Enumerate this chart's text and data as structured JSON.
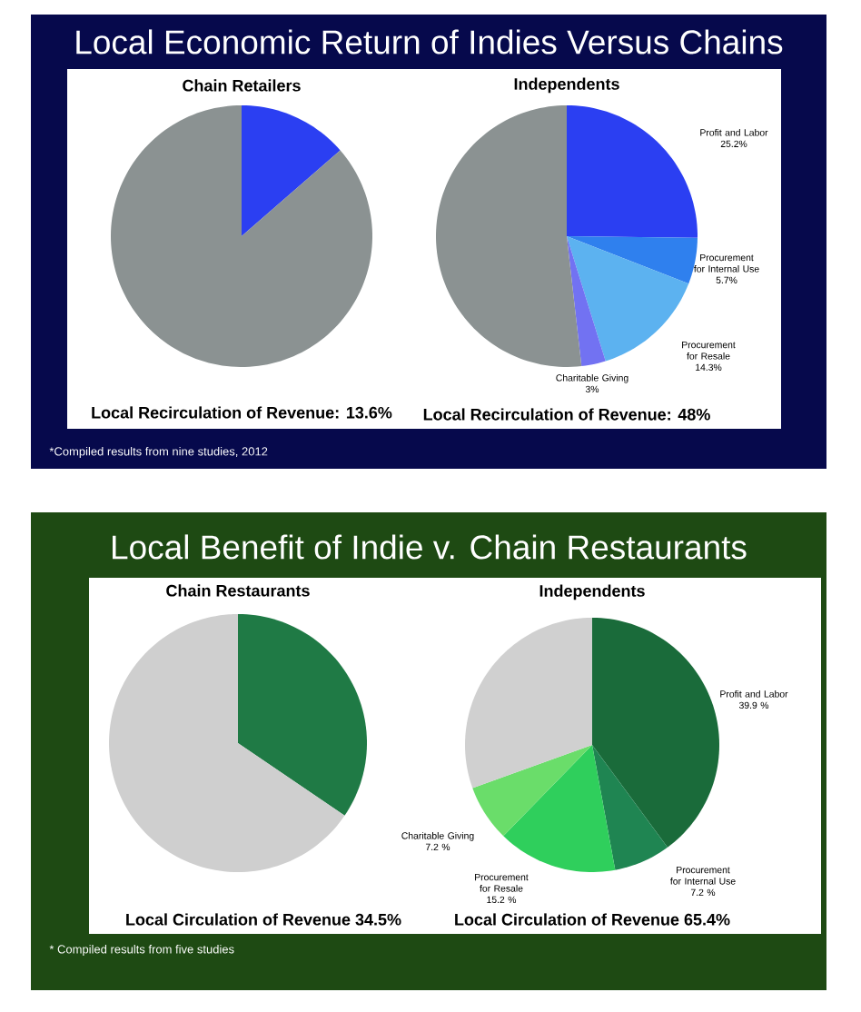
{
  "chart_data": [
    {
      "type": "pie",
      "title": "Local Economic Return of Indies Versus Chains",
      "subtitle": "Chain Retailers",
      "categories": [
        null,
        null
      ],
      "values": [
        13.6,
        86.4
      ],
      "colors": [
        "#2b3ff2",
        "#8b9292"
      ],
      "annotations": [
        "Local Recirculation of Revenue: 13.6%"
      ]
    },
    {
      "type": "pie",
      "title": "Independents",
      "categories": [
        "Profit and Labor",
        "Procurement for Internal Use",
        "Procurement for Resale",
        "Charitable Giving",
        null
      ],
      "values": [
        25.2,
        5.7,
        14.3,
        3,
        51.8
      ],
      "value_labels": [
        "25.2%",
        "5.7%",
        "14.3%",
        "3%",
        null
      ],
      "colors": [
        "#2b3ff2",
        "#2f80ee",
        "#5cb2f0",
        "#7272f2",
        "#8b9292"
      ],
      "annotations": [
        "Local Recirculation of Revenue: 48%",
        "*Compiled results from nine studies, 2012"
      ]
    },
    {
      "type": "pie",
      "title": "Local Benefit of Indie v. Chain Restaurants",
      "subtitle": "Chain Restaurants",
      "categories": [
        null,
        null
      ],
      "values": [
        34.5,
        65.5
      ],
      "colors": [
        "#1f7a45",
        "#cfcfcf"
      ],
      "annotations": [
        "Local Circulation of Revenue  34.5%"
      ]
    },
    {
      "type": "pie",
      "title": "Independents",
      "categories": [
        "Profit and Labor",
        "Procurement for Internal Use",
        "Procurement for Resale",
        "Charitable Giving",
        null
      ],
      "values": [
        39.9,
        7.2,
        15.2,
        7.2,
        30.5
      ],
      "value_labels": [
        "39.9 %",
        "7.2 %",
        "15.2 %",
        "7.2 %",
        null
      ],
      "colors": [
        "#1a6b3a",
        "#1f8552",
        "#2fcf5c",
        "#6add6a",
        "#d0d0d0"
      ],
      "annotations": [
        "Local Circulation of Revenue 65.4%",
        "* Compiled results from five studies"
      ]
    }
  ]
}
